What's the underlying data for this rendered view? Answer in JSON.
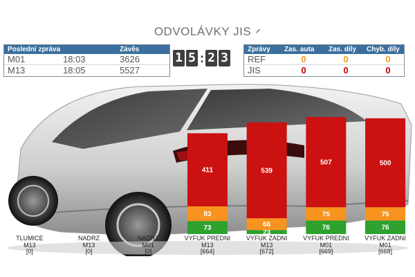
{
  "title": "ODVOLÁVKY JIS",
  "last_message": {
    "headers": [
      "Poslední zpráva",
      "Závěs"
    ],
    "rows": [
      {
        "code": "M01",
        "time": "18:03",
        "value": "3626"
      },
      {
        "code": "M13",
        "time": "18:05",
        "value": "5527"
      }
    ]
  },
  "clock": {
    "digits": [
      "1",
      "5",
      "2",
      "3"
    ],
    "separator": ":"
  },
  "messages": {
    "headers": [
      "Zprávy",
      "Zas. auta",
      "Zas. díly",
      "Chyb. díly"
    ],
    "rows": [
      {
        "name": "REF",
        "values": [
          "0",
          "0",
          "0"
        ]
      },
      {
        "name": "JIS",
        "values": [
          "0",
          "0",
          "0"
        ]
      }
    ]
  },
  "colors": {
    "header": "#3b6f9d",
    "red": "#cc1111",
    "orange": "#f7931e",
    "green": "#2ea12e"
  },
  "chart_data": {
    "type": "bar",
    "stacked": true,
    "categories": [
      {
        "name": "TLUMICE",
        "line": "M13",
        "total": "[0]"
      },
      {
        "name": "NADRZ",
        "line": "M13",
        "total": "[0]"
      },
      {
        "name": "NADRZ",
        "line": "M01",
        "total": "[0]"
      },
      {
        "name": "VYFUK PREDNI",
        "line": "M13",
        "total": "[664]"
      },
      {
        "name": "VYFUK ZADNI",
        "line": "M13",
        "total": "[672]"
      },
      {
        "name": "VYFUK PREDNI",
        "line": "M01",
        "total": "[669]"
      },
      {
        "name": "VYFUK ZADNI",
        "line": "M01",
        "total": "[668]"
      }
    ],
    "series": [
      {
        "color": "#2ea12e",
        "values": [
          0,
          0,
          0,
          73,
          23,
          76,
          76
        ]
      },
      {
        "color": "#f7931e",
        "values": [
          0,
          0,
          0,
          83,
          66,
          75,
          75
        ]
      },
      {
        "color": "#cc1111",
        "values": [
          0,
          0,
          0,
          411,
          539,
          507,
          500
        ]
      }
    ],
    "ylim": [
      0,
      740
    ]
  }
}
